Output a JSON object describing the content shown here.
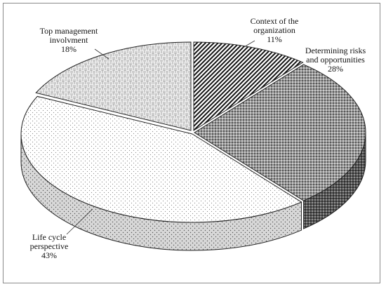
{
  "chart_data": {
    "type": "pie",
    "title": "",
    "style": "3d-exploded-hatched",
    "slices": [
      {
        "label_lines": [
          "Context of the",
          "organization"
        ],
        "label": "Context of the organization",
        "value": 11,
        "value_label": "11%",
        "pattern": "diagonal-stripes"
      },
      {
        "label_lines": [
          "Determining risks",
          "and opportunities"
        ],
        "label": "Determining risks and opportunities",
        "value": 28,
        "value_label": "28%",
        "pattern": "dense-dots"
      },
      {
        "label_lines": [
          "Life  cycle",
          "perspective"
        ],
        "label": "Life cycle perspective",
        "value": 43,
        "value_label": "43%",
        "pattern": "sparse-dots"
      },
      {
        "label_lines": [
          "Top management",
          "involvment"
        ],
        "label": "Top management involvment",
        "value": 18,
        "value_label": "18%",
        "pattern": "basket-weave"
      }
    ]
  }
}
